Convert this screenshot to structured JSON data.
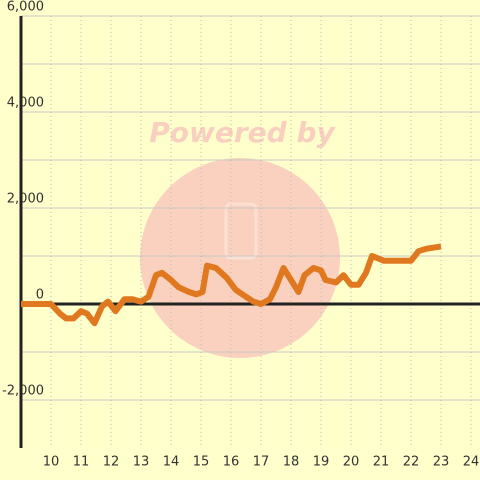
{
  "watermark": "Powered by",
  "chart_data": {
    "type": "line",
    "x": [
      9,
      10,
      10.3,
      10.5,
      10.75,
      11,
      11.2,
      11.45,
      11.7,
      11.9,
      12.15,
      12.45,
      12.7,
      13,
      13.25,
      13.5,
      13.7,
      14,
      14.25,
      14.6,
      14.85,
      15.05,
      15.2,
      15.5,
      15.85,
      16.15,
      16.5,
      16.75,
      17,
      17.3,
      17.5,
      17.75,
      18,
      18.25,
      18.45,
      18.75,
      19,
      19.15,
      19.5,
      19.75,
      20,
      20.25,
      20.5,
      20.7,
      21.1,
      21.45,
      22,
      22.25,
      22.5,
      23
    ],
    "series": [
      {
        "color": "#e07820",
        "values": [
          0,
          0,
          -200,
          -300,
          -300,
          -150,
          -200,
          -400,
          -50,
          50,
          -150,
          100,
          100,
          50,
          150,
          600,
          650,
          500,
          350,
          250,
          200,
          250,
          800,
          750,
          550,
          300,
          150,
          50,
          0,
          100,
          350,
          750,
          500,
          250,
          600,
          750,
          700,
          500,
          450,
          600,
          400,
          400,
          650,
          1000,
          900,
          900,
          900,
          1100,
          1150,
          1200
        ]
      }
    ],
    "xlim": [
      9,
      24.3
    ],
    "xticks": [
      10,
      11,
      12,
      13,
      14,
      15,
      16,
      17,
      18,
      19,
      20,
      21,
      22,
      23,
      24
    ],
    "ylim": [
      -3000,
      6000
    ],
    "yticks": [
      {
        "value": -2000,
        "label": "-2,000"
      },
      0,
      {
        "value": 2000,
        "label": "2,000"
      },
      {
        "value": 4000,
        "label": "4,000"
      },
      {
        "value": 6000,
        "label": "6,000"
      }
    ],
    "grid": true
  }
}
